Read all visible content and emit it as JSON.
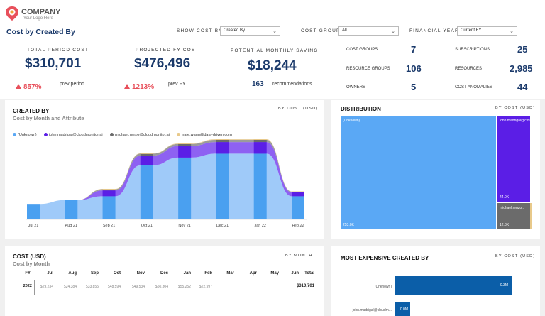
{
  "brand": {
    "name": "COMPANY",
    "tagline": "Your Logo Here"
  },
  "page_title": "Cost by Created By",
  "filters": [
    {
      "label": "SHOW COST BY",
      "value": "Created By"
    },
    {
      "label": "COST GROUP",
      "value": "All"
    },
    {
      "label": "FINANCIAL YEAR",
      "value": "Current FY"
    }
  ],
  "kpis": {
    "total_period": {
      "label": "TOTAL PERIOD COST",
      "value": "$310,701",
      "change": "857%",
      "change_label": "prev period"
    },
    "projected_fy": {
      "label": "PROJECTED FY COST",
      "value": "$476,496",
      "change": "1213%",
      "change_label": "prev FY"
    },
    "monthly_saving": {
      "label": "POTENTIAL MONTHLY SAVING",
      "value": "$18,244",
      "count": "163",
      "count_label": "recommendations"
    }
  },
  "stats": [
    {
      "label": "COST GROUPS",
      "value": "7"
    },
    {
      "label": "SUBSCRIPTIONS",
      "value": "25"
    },
    {
      "label": "RESOURCE GROUPS",
      "value": "106"
    },
    {
      "label": "RESOURCES",
      "value": "2,985"
    },
    {
      "label": "OWNERS",
      "value": "5"
    },
    {
      "label": "COST ANOMALIES",
      "value": "44"
    }
  ],
  "created_by_panel": {
    "title": "CREATED BY",
    "subtitle": "Cost by Month and Attribute",
    "by_label": "BY COST (USD)",
    "legend": [
      {
        "name": "(Unknown)",
        "color": "#5aa8f5"
      },
      {
        "name": "john.madrigal@cloudmonitor.ai",
        "color": "#5b1ee6"
      },
      {
        "name": "michael.renzo@cloudmonitor.ai",
        "color": "#6b6b6b"
      },
      {
        "name": "nate.wang@data-driven.com",
        "color": "#e8c98a"
      }
    ]
  },
  "chart_data": {
    "type": "area",
    "categories": [
      "Jul 21",
      "Aug 21",
      "Sep 21",
      "Oct 21",
      "Nov 21",
      "Dec 21",
      "Jan 22",
      "Feb 22"
    ],
    "series": [
      {
        "name": "(Unknown)",
        "values": [
          4000,
          5000,
          6000,
          14000,
          16000,
          17000,
          17000,
          6000
        ]
      },
      {
        "name": "john.madrigal@cloudmonitor.ai",
        "values": [
          0,
          0,
          1500,
          2500,
          3000,
          3000,
          3000,
          1000
        ]
      },
      {
        "name": "michael.renzo@cloudmonitor.ai",
        "values": [
          0,
          0,
          300,
          500,
          500,
          600,
          600,
          200
        ]
      },
      {
        "name": "nate.wang@data-driven.com",
        "values": [
          0,
          0,
          100,
          100,
          150,
          150,
          150,
          50
        ]
      }
    ]
  },
  "distribution_panel": {
    "title": "DISTRIBUTION",
    "by_label": "BY COST (USD)",
    "tiles": [
      {
        "name": "(Unknown)",
        "value": "253.0K",
        "color": "#5aa8f5"
      },
      {
        "name": "john.madrigal@clou...",
        "value": "44.0K",
        "color": "#5b1ee6"
      },
      {
        "name": "michael.renzo...",
        "value": "12.8K",
        "color": "#6b6b6b"
      }
    ]
  },
  "cost_table": {
    "title": "COST (USD)",
    "subtitle": "Cost by Month",
    "by_label": "BY MONTH",
    "headers": [
      "FY",
      "Jul",
      "Aug",
      "Sep",
      "Oct",
      "Nov",
      "Dec",
      "Jan",
      "Feb",
      "Mar",
      "Apr",
      "May",
      "Jun",
      "Total"
    ],
    "rows": [
      {
        "fy": "2022",
        "cells": [
          "$29,234",
          "$24,384",
          "$33,855",
          "$48,594",
          "$49,534",
          "$50,304",
          "$55,252",
          "$22,997",
          "",
          "",
          "",
          ""
        ],
        "total": "$310,701"
      }
    ]
  },
  "most_expensive_panel": {
    "title": "MOST EXPENSIVE CREATED BY",
    "by_label": "BY COST (USD)",
    "bars": [
      {
        "name": "(Unknown)",
        "value": 0.3,
        "label": "0.3M"
      },
      {
        "name": "john.madrigal@cloudm...",
        "value": 0.04,
        "label": "0.0M"
      }
    ]
  }
}
